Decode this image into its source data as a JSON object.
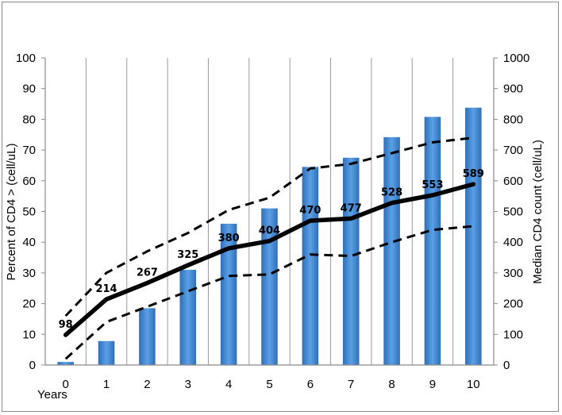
{
  "chart_data": {
    "type": "bar+line",
    "x": [
      0,
      1,
      2,
      3,
      4,
      5,
      6,
      7,
      8,
      9,
      10
    ],
    "x_ticks": [
      "0",
      "1",
      "2",
      "3",
      "4",
      "5",
      "6",
      "7",
      "8",
      "9",
      "10"
    ],
    "xlabel": "Years",
    "ylabel_left": "Percent of CD4 > (cell/uL)",
    "ylabel_right": "Median CD4 count (cell/uL)",
    "ylim_left": [
      0,
      100
    ],
    "ylim_right": [
      0,
      1000
    ],
    "yticks_left": [
      "0",
      "10",
      "20",
      "30",
      "40",
      "50",
      "60",
      "70",
      "80",
      "90",
      "100"
    ],
    "yticks_right": [
      "0",
      "100",
      "200",
      "300",
      "400",
      "500",
      "600",
      "700",
      "800",
      "900",
      "1000"
    ],
    "grid": "vertical",
    "series": [
      {
        "kind": "bar",
        "axis": "left",
        "color": "#4a90d9",
        "values": [
          1,
          7.8,
          18.5,
          31,
          46,
          51,
          64.5,
          67.5,
          74.2,
          80.8,
          83.8
        ]
      },
      {
        "kind": "line",
        "style": "solid",
        "axis": "right",
        "color": "#000000",
        "values": [
          98,
          214,
          267,
          325,
          380,
          404,
          470,
          477,
          528,
          553,
          589
        ],
        "labels": [
          "98",
          "214",
          "267",
          "325",
          "380",
          "404",
          "470",
          "477",
          "528",
          "553",
          "589"
        ]
      },
      {
        "kind": "line",
        "style": "dashed",
        "axis": "right",
        "color": "#000000",
        "values": [
          160,
          300,
          370,
          430,
          505,
          545,
          640,
          655,
          690,
          725,
          740
        ]
      },
      {
        "kind": "line",
        "style": "dashed",
        "axis": "right",
        "color": "#000000",
        "values": [
          20,
          140,
          190,
          240,
          290,
          295,
          360,
          355,
          400,
          440,
          452
        ]
      }
    ]
  }
}
